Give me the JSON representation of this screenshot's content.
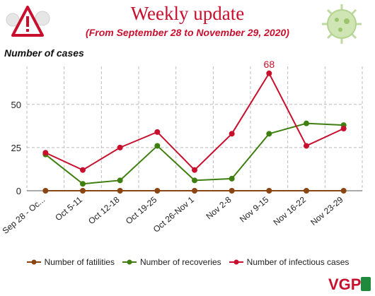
{
  "header": {
    "title": "Weekly update",
    "subtitle": "(From September 28 to November 29, 2020)",
    "chart_heading": "Number of cases"
  },
  "icons": {
    "left": "warning-icon",
    "right": "virus-icon",
    "logo": "vgp-logo"
  },
  "colors": {
    "fatalities": "#8b4513",
    "recoveries": "#3f7f0f",
    "infectious": "#c8102e",
    "title": "#c8102e",
    "grid": "#bbbbbb"
  },
  "logo_text": "VGP",
  "chart_data": {
    "type": "line",
    "title": "Number of cases",
    "categories": [
      "Sep 28 - Oc...",
      "Oct 5-11",
      "Oct 12-18",
      "Oct 19-25",
      "Oct 26-Nov 1",
      "Nov 2-8",
      "Nov 9-15",
      "Nov 16-22",
      "Nov 23-29"
    ],
    "series": [
      {
        "name": "Number of fatilities",
        "values": [
          0,
          0,
          0,
          0,
          0,
          0,
          0,
          0,
          0
        ],
        "color": "#8b4513"
      },
      {
        "name": "Number of recoveries",
        "values": [
          21,
          4,
          6,
          26,
          6,
          7,
          33,
          39,
          38
        ],
        "color": "#3f7f0f"
      },
      {
        "name": "Number of infectious cases",
        "values": [
          22,
          12,
          25,
          34,
          12,
          33,
          68,
          26,
          36
        ],
        "color": "#c8102e"
      }
    ],
    "annotations": [
      {
        "category": "Nov 9-15",
        "series": "Number of infectious cases",
        "text": "68"
      }
    ],
    "yticks": [
      0,
      25,
      50
    ],
    "ylim": [
      0,
      72
    ],
    "xlabel": "",
    "ylabel": "",
    "grid": true,
    "legend_position": "bottom"
  }
}
